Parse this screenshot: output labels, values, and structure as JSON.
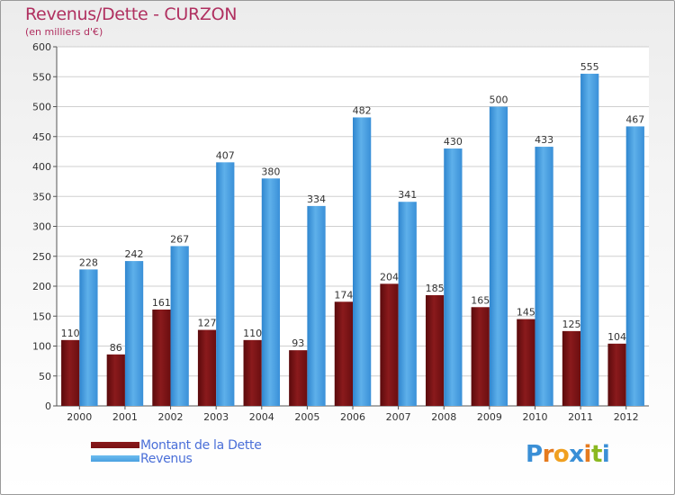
{
  "chart_data": {
    "type": "bar",
    "title": "Revenus/Dette - CURZON",
    "subtitle": "(en milliers d'€)",
    "xlabel": "",
    "ylabel": "",
    "ylim": [
      0,
      600
    ],
    "yticks": [
      0,
      50,
      100,
      150,
      200,
      250,
      300,
      350,
      400,
      450,
      500,
      550,
      600
    ],
    "grid": true,
    "legend_position": "bottom-left",
    "categories": [
      "2000",
      "2001",
      "2002",
      "2003",
      "2004",
      "2005",
      "2006",
      "2007",
      "2008",
      "2009",
      "2010",
      "2011",
      "2012"
    ],
    "series": [
      {
        "name": "Montant de la Dette",
        "color": "#7a1214",
        "values": [
          110,
          86,
          161,
          127,
          110,
          93,
          174,
          204,
          185,
          165,
          145,
          125,
          104
        ]
      },
      {
        "name": "Revenus",
        "color": "#4aa0e0",
        "values": [
          228,
          242,
          267,
          407,
          380,
          334,
          482,
          341,
          430,
          500,
          433,
          555,
          467
        ]
      }
    ]
  },
  "branding": {
    "logo_letters": [
      "P",
      "r",
      "o",
      "x",
      "i",
      "t",
      "i"
    ],
    "logo_colors": [
      "#3a8fd6",
      "#e57a1e",
      "#f0a020",
      "#3a8fd6",
      "#e57a1e",
      "#8ab820",
      "#3a8fd6"
    ]
  }
}
